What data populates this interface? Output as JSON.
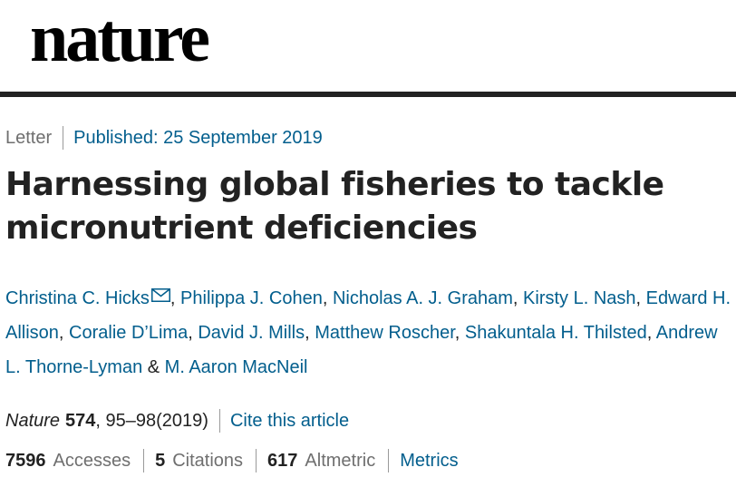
{
  "header": {
    "logo_text": "nature"
  },
  "article": {
    "type": "Letter",
    "published": "Published: 25 September 2019",
    "title": "Harnessing global fisheries to tackle micronutrient deficiencies",
    "authors": [
      "Christina C. Hicks",
      "Philippa J. Cohen",
      "Nicholas A. J. Graham",
      "Kirsty L. Nash",
      "Edward H. Allison",
      "Coralie D’Lima",
      "David J. Mills",
      "Matthew Roscher",
      "Shakuntala H. Thilsted",
      "Andrew L. Thorne-Lyman",
      "M. Aaron MacNeil"
    ],
    "author_separator": ", ",
    "author_last_separator": " & ",
    "journal": "Nature",
    "volume": "574",
    "pages_year": ", 95–98(2019)",
    "cite_label": "Cite this article"
  },
  "metrics": {
    "accesses_value": "7596",
    "accesses_label": "Accesses",
    "citations_value": "5",
    "citations_label": "Citations",
    "altmetric_value": "617",
    "altmetric_label": "Altmetric",
    "metrics_link": "Metrics"
  },
  "icons": {
    "corresponding_author": "envelope-icon"
  },
  "colors": {
    "link": "#025e8d",
    "text": "#222222",
    "muted": "#6f6f6f",
    "rule": "#222222"
  }
}
